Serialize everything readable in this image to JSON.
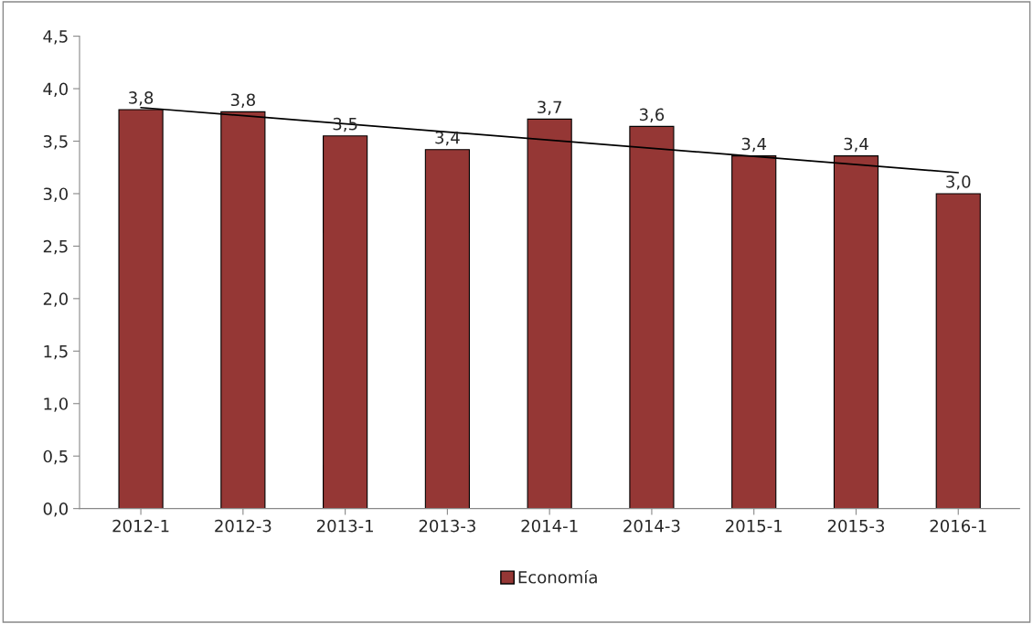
{
  "chart_data": {
    "type": "bar",
    "categories": [
      "2012-1",
      "2012-3",
      "2013-1",
      "2013-3",
      "2014-1",
      "2014-3",
      "2015-1",
      "2015-3",
      "2016-1"
    ],
    "series": [
      {
        "name": "Economía",
        "color": "#953735",
        "values": [
          3.8,
          3.78,
          3.55,
          3.42,
          3.71,
          3.64,
          3.36,
          3.36,
          3.0
        ],
        "value_labels": [
          "3,8",
          "3,8",
          "3,5",
          "3,4",
          "3,7",
          "3,6",
          "3,4",
          "3,4",
          "3,0"
        ]
      },
      {
        "type": "line",
        "color": "#000000",
        "x": [
          "2012-1",
          "2016-1"
        ],
        "values": [
          3.82,
          3.2
        ]
      }
    ],
    "ylim": [
      0,
      4.5
    ],
    "yticks": [
      {
        "value": 0,
        "label": "0,0"
      },
      {
        "value": 0.5,
        "label": "0,5"
      },
      {
        "value": 1,
        "label": "1,0"
      },
      {
        "value": 1.5,
        "label": "1,5"
      },
      {
        "value": 2,
        "label": "2,0"
      },
      {
        "value": 2.5,
        "label": "2,5"
      },
      {
        "value": 3,
        "label": "3,0"
      },
      {
        "value": 3.5,
        "label": "3,5"
      },
      {
        "value": 4,
        "label": "4,0"
      },
      {
        "value": 4.5,
        "label": "4,5"
      }
    ],
    "grid": false,
    "legend": "bottom"
  }
}
